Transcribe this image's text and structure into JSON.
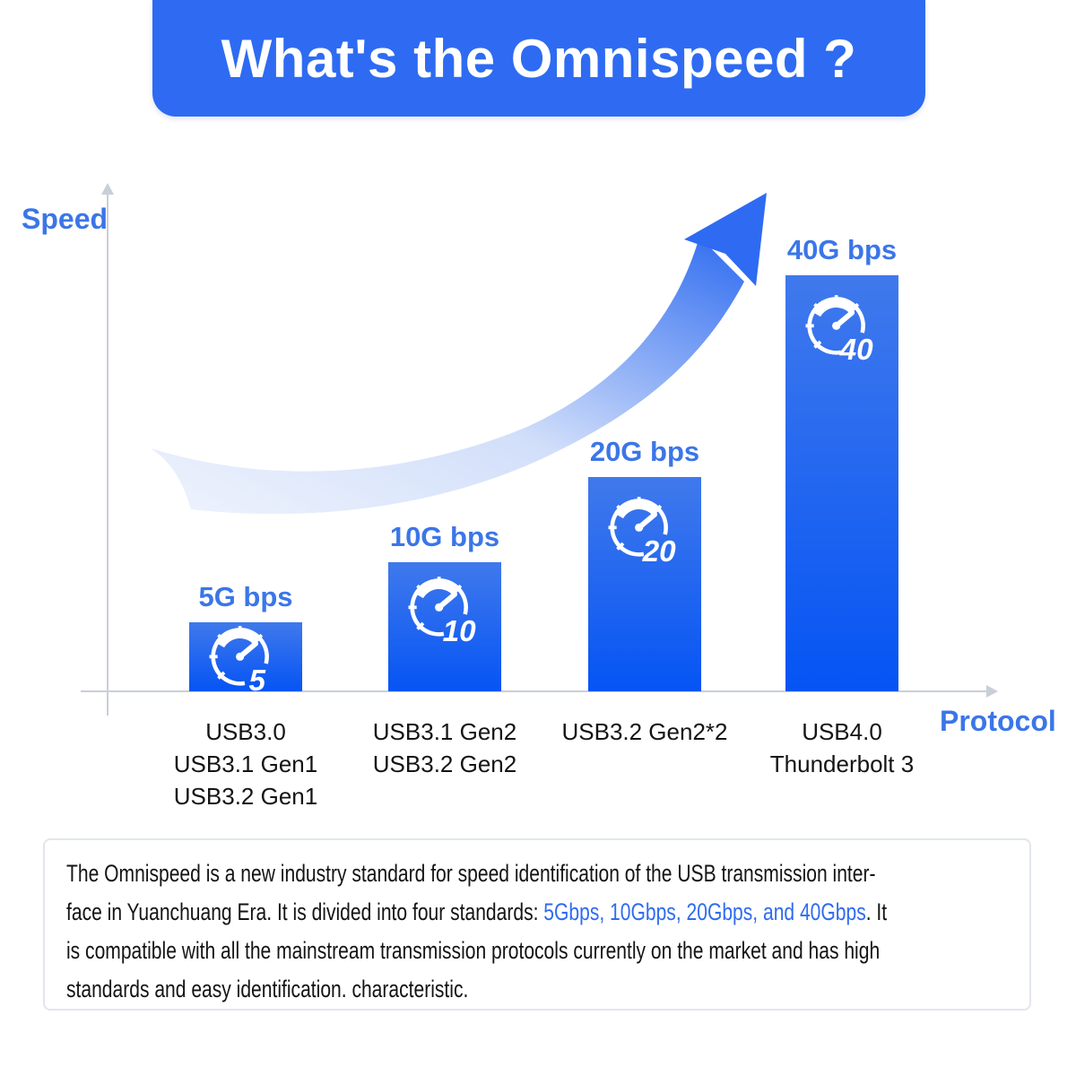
{
  "title": "What's the Omnispeed ?",
  "axes": {
    "y_label": "Speed",
    "x_label": "Protocol"
  },
  "chart_data": {
    "type": "bar",
    "title": "What's the Omnispeed ?",
    "xlabel": "Protocol",
    "ylabel": "Speed",
    "unit": "Gbps",
    "values": [
      5,
      10,
      20,
      40
    ],
    "bar_labels": [
      "5G bps",
      "10G bps",
      "20G bps",
      "40G bps"
    ],
    "icon_numbers": [
      "5",
      "10",
      "20",
      "40"
    ],
    "categories": [
      [
        "USB3.0",
        "USB3.1 Gen1",
        "USB3.2 Gen1"
      ],
      [
        "USB3.1 Gen2",
        "USB3.2 Gen2"
      ],
      [
        "USB3.2 Gen2*2"
      ],
      [
        "USB4.0",
        "Thunderbolt 3"
      ]
    ],
    "ylim": [
      0,
      40
    ],
    "grid": false,
    "legend": false,
    "annotations": [
      "upward curved arrow indicating speed growth"
    ]
  },
  "colors": {
    "banner_blue": "#2e6bf2",
    "accent_blue": "#3b76e8",
    "bar_gradient_top": "#4079ec",
    "bar_gradient_bottom": "#0554f4",
    "axis_gray": "#c9cfd8",
    "swoosh_light": "#eef3fd",
    "swoosh_dark": "#2e6bf0",
    "body_text": "#141414",
    "highlight_blue": "#2f6bf0"
  },
  "description": {
    "lines": [
      [
        {
          "t": "The Omnispeed is a new industry standard for speed identification of the USB transmission inter-"
        }
      ],
      [
        {
          "t": "face in Yuanchuang Era. It is divided into four standards: "
        },
        {
          "t": "5Gbps, 10Gbps, 20Gbps, and 40Gbps",
          "hl": true
        },
        {
          "t": ". It"
        }
      ],
      [
        {
          "t": "is compatible with all the mainstream transmission protocols currently on the market and has high"
        }
      ],
      [
        {
          "t": "standards and easy identification. characteristic."
        }
      ]
    ]
  }
}
